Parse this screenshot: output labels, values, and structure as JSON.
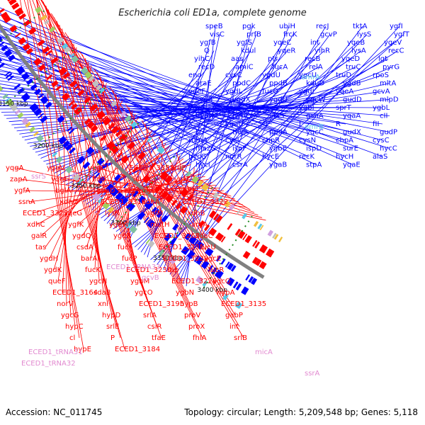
{
  "title": "Escherichia coli ED1a, complete genome",
  "accession": "Accession: NC_011745",
  "topology": "Topology: circular; Length: 5,209,548 bp; Genes: 5,118",
  "colors": {
    "forward": "#ff0000",
    "reverse": "#0000ff",
    "trna": "#e28ad0",
    "other": "#58c8e8",
    "backbone": "#808080",
    "tick": "#228b22"
  },
  "ticks": [
    "3400 kbp",
    "3350 kbp",
    "3300 kbp",
    "3250 kbp",
    "3200 kbp",
    "3150 kbp",
    "3100 kbp",
    "3050 kbp",
    "3000 kbp"
  ],
  "blue_labels": [
    "speB",
    "pgk",
    "ubiH",
    "recJ",
    "tktA",
    "ygfI",
    "visC",
    "prfB",
    "frcK",
    "gcvP",
    "lysS",
    "ygfT",
    "ygfB",
    "ygfS",
    "yqeC",
    "int",
    "yqeB",
    "yqeV",
    "Q",
    "kdul",
    "yqeR",
    "yihR",
    "lysA",
    "recC",
    "yihC",
    "aas",
    "ptr",
    "recB",
    "yqeD",
    "lgt",
    "recD",
    "amiC",
    "fucA",
    "relA",
    "truC",
    "pyrG",
    "eno",
    "cysC",
    "ygdU",
    "ygcU",
    "truD",
    "rpoS",
    "araE",
    "ppdC",
    "ppdB",
    "kduD",
    "ygdB",
    "mltA",
    "yqeF",
    "ygdL",
    "fucO",
    "ygdI",
    "yqeA",
    "gcvA",
    "sydB",
    "ygdX",
    "ygdU",
    "ygcW",
    "gudD",
    "mlpD",
    "ygcS",
    "pcm",
    "rpoS",
    "ygbI",
    "sprT",
    "ygbL",
    "hydN",
    "hypF",
    "luxS",
    "gshA",
    "yqaA",
    "cII",
    "X",
    "ygaU",
    "O",
    "J",
    "R",
    "fII",
    "D",
    "thyA",
    "ppdA",
    "yqcC",
    "gudX",
    "gudP",
    "rumA",
    "cysI",
    "chpR",
    "cysN",
    "chpA",
    "cysC",
    "mazG",
    "ispF",
    "ygbE",
    "ispD",
    "surE",
    "hycC",
    "hycG",
    "norR",
    "hycE",
    "recK",
    "hycH",
    "alaS",
    "hycI",
    "csrA",
    "ygaB",
    "stpA",
    "yqaE"
  ],
  "red_labels": [
    "yqgA",
    "yggV",
    "yqgC",
    "ECED1_3385",
    "argP",
    "zapA",
    "yqgF",
    "fldB",
    "idi",
    "ygfZ",
    "ygfA",
    "bglA",
    "guaD",
    "ygfJ",
    "ygfU",
    "ssnA",
    "xdhD",
    "ECED1_3316",
    "xdhA",
    "ECED1_3322",
    "ECED1_3323",
    "yqeG",
    "lysR",
    "ygfM",
    "xdhB",
    "xdhC",
    "ygfK",
    "ygeW",
    "mutH",
    "argA",
    "galR",
    "ygdQ",
    "ygdR",
    "ECED1_3262",
    "sdaC",
    "tas",
    "csdA",
    "fucI",
    "ECED1_3231",
    "fucU",
    "ygdH",
    "barA",
    "fucP",
    "ECED1_3228",
    "ygcE",
    "ygdK",
    "fucK",
    "ECED1_3230",
    "rap",
    "fucR",
    "queF",
    "ygcN",
    "ygbM",
    "ECED1_3226",
    "ygcQ",
    "ECED1_3164",
    "sdaB",
    "ygcO",
    "ygbN",
    "hypA",
    "norV",
    "xni",
    "ECED1_3195",
    "hypB",
    "ECED1_3135",
    "ygcG",
    "hypD",
    "srlA",
    "proV",
    "gabP",
    "hypC",
    "srlE",
    "csiR",
    "proX",
    "int",
    "cl",
    "P",
    "tfaE",
    "fhlA",
    "srlB",
    "hypE",
    "ECED1_3184"
  ],
  "pink_labels": [
    "ssrS",
    "ECED1_tRNA33",
    "gcvB",
    "micA",
    "ECED1_tRNA31",
    "ECED1_tRNA32",
    "ssrA"
  ],
  "cyan_labels": [
    "omrA",
    "omrB"
  ]
}
